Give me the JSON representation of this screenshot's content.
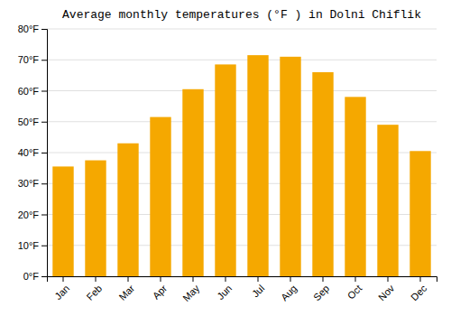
{
  "chart_data": {
    "type": "bar",
    "title": "Average monthly temperatures (°F ) in Dolni Chiflik",
    "categories": [
      "Jan",
      "Feb",
      "Mar",
      "Apr",
      "May",
      "Jun",
      "Jul",
      "Aug",
      "Sep",
      "Oct",
      "Nov",
      "Dec"
    ],
    "values": [
      35.5,
      37.5,
      43.0,
      51.5,
      60.5,
      68.5,
      71.5,
      71.0,
      66.0,
      58.0,
      49.0,
      40.5
    ],
    "color": "#F5A800",
    "ylim": [
      0,
      80
    ],
    "yticks": [
      {
        "value": 0,
        "label": "0°F"
      },
      {
        "value": 10,
        "label": "10°F"
      },
      {
        "value": 20,
        "label": "20°F"
      },
      {
        "value": 30,
        "label": "30°F"
      },
      {
        "value": 40,
        "label": "40°F"
      },
      {
        "value": 50,
        "label": "50°F"
      },
      {
        "value": 60,
        "label": "60°F"
      },
      {
        "value": 70,
        "label": "70°F"
      },
      {
        "value": 80,
        "label": "80°F"
      }
    ],
    "grid": true
  }
}
